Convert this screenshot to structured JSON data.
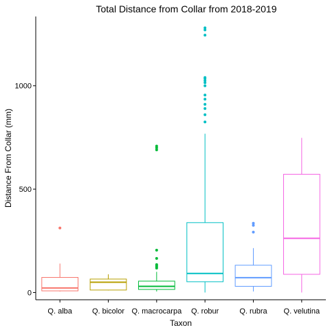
{
  "chart_data": {
    "type": "boxplot",
    "title": "Total Distance from Collar from 2018-2019",
    "xlabel": "Taxon",
    "ylabel": "Distance From Collar (mm)",
    "ylim": [
      -35,
      1335
    ],
    "yticks": [
      0,
      500,
      1000
    ],
    "grid": false,
    "legend": "none",
    "categories": [
      "Q. alba",
      "Q. bicolor",
      "Q. macrocarpa",
      "Q. robur",
      "Q. rubra",
      "Q. velutina"
    ],
    "series": [
      {
        "category": "Q. alba",
        "color": "#F8766D",
        "min": 5,
        "q1": 8,
        "median": 22,
        "q3": 73,
        "max": 140,
        "outliers": [
          312
        ]
      },
      {
        "category": "Q. bicolor",
        "color": "#B79F00",
        "min": 10,
        "q1": 12,
        "median": 50,
        "q3": 65,
        "max": 88,
        "outliers": []
      },
      {
        "category": "Q. macrocarpa",
        "color": "#00BA38",
        "min": 5,
        "q1": 15,
        "median": 30,
        "q3": 55,
        "max": 100,
        "outliers": [
          118,
          124,
          130,
          135,
          165,
          205,
          690,
          700,
          708
        ]
      },
      {
        "category": "Q. robur",
        "color": "#00BFC4",
        "min": 0,
        "q1": 52,
        "median": 92,
        "q3": 338,
        "max": 768,
        "outliers": [
          825,
          860,
          890,
          910,
          935,
          955,
          1000,
          1015,
          1025,
          1035,
          1040,
          1245,
          1270,
          1280
        ]
      },
      {
        "category": "Q. rubra",
        "color": "#619CFF",
        "min": 5,
        "q1": 30,
        "median": 72,
        "q3": 132,
        "max": 215,
        "outliers": [
          292,
          325,
          335
        ]
      },
      {
        "category": "Q. velutina",
        "color": "#F564E3",
        "min": 0,
        "q1": 88,
        "median": 262,
        "q3": 572,
        "max": 748,
        "outliers": []
      }
    ]
  }
}
